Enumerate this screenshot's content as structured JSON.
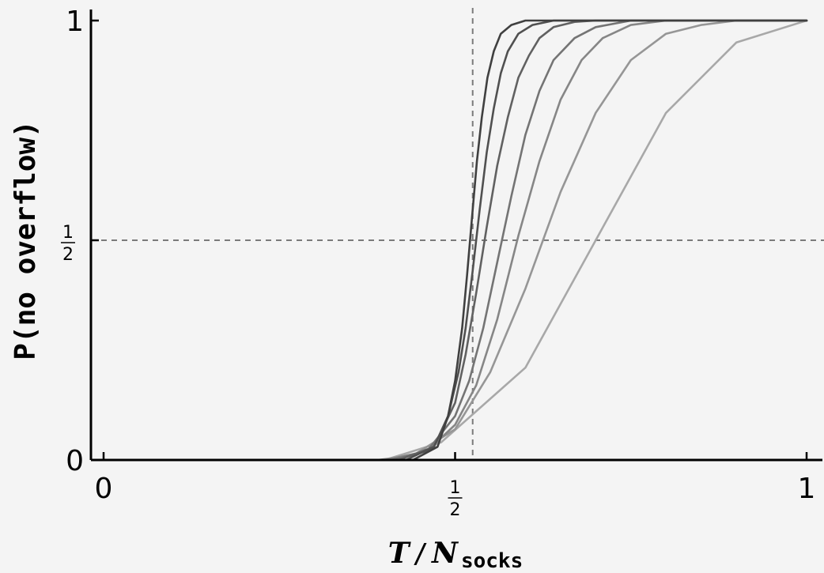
{
  "chart_data": {
    "type": "line",
    "title": "",
    "xlabel": {
      "main": "T",
      "slash": "/",
      "base": "N",
      "subscript": "socks"
    },
    "ylabel": "P(no overflow)",
    "xlim": [
      0,
      1
    ],
    "ylim": [
      0,
      1
    ],
    "x_ticks": [
      {
        "value": 0,
        "kind": "text",
        "text": "0"
      },
      {
        "value": 0.5,
        "kind": "fraction",
        "num": "1",
        "den": "2"
      },
      {
        "value": 1,
        "kind": "text",
        "text": "1"
      }
    ],
    "y_ticks": [
      {
        "value": 0,
        "kind": "text",
        "text": "0"
      },
      {
        "value": 0.5,
        "kind": "fraction",
        "num": "1",
        "den": "2"
      },
      {
        "value": 1,
        "kind": "text",
        "text": "1"
      }
    ],
    "reference_lines": {
      "vertical_x": 0.525,
      "horizontal_y": 0.5
    },
    "grid": false,
    "legend": "none",
    "series": [
      {
        "color": "#a8a8a8",
        "x": [
          0.0,
          0.4,
          0.48,
          0.6,
          0.8,
          0.9,
          1.0
        ],
        "y": [
          0.0,
          0.0,
          0.04,
          0.21,
          0.79,
          0.95,
          1.0
        ]
      },
      {
        "color": "#969696",
        "x": [
          0.0,
          0.39,
          0.44,
          0.5,
          0.55,
          0.6,
          0.65,
          0.7,
          0.75,
          0.8,
          0.85,
          0.9,
          1.0
        ],
        "y": [
          0.0,
          0.0,
          0.01,
          0.07,
          0.2,
          0.39,
          0.61,
          0.79,
          0.91,
          0.97,
          0.99,
          1.0,
          1.0
        ]
      },
      {
        "color": "#868686",
        "x": [
          0.0,
          0.4,
          0.46,
          0.5,
          0.53,
          0.56,
          0.59,
          0.62,
          0.65,
          0.68,
          0.71,
          0.75,
          0.8,
          1.0
        ],
        "y": [
          0.0,
          0.0,
          0.02,
          0.08,
          0.17,
          0.32,
          0.51,
          0.68,
          0.82,
          0.91,
          0.96,
          0.99,
          1.0,
          1.0
        ]
      },
      {
        "color": "#747474",
        "x": [
          0.0,
          0.41,
          0.46,
          0.5,
          0.52,
          0.54,
          0.56,
          0.58,
          0.6,
          0.62,
          0.64,
          0.67,
          0.7,
          0.75,
          1.0
        ],
        "y": [
          0.0,
          0.0,
          0.02,
          0.1,
          0.18,
          0.3,
          0.45,
          0.6,
          0.74,
          0.84,
          0.91,
          0.96,
          0.985,
          1.0,
          1.0
        ]
      },
      {
        "color": "#616161",
        "x": [
          0.0,
          0.42,
          0.47,
          0.5,
          0.515,
          0.53,
          0.545,
          0.56,
          0.575,
          0.59,
          0.605,
          0.62,
          0.64,
          0.67,
          0.7,
          1.0
        ],
        "y": [
          0.0,
          0.0,
          0.03,
          0.13,
          0.24,
          0.38,
          0.53,
          0.67,
          0.78,
          0.87,
          0.92,
          0.96,
          0.985,
          0.997,
          1.0,
          1.0
        ]
      },
      {
        "color": "#505050",
        "x": [
          0.0,
          0.43,
          0.47,
          0.49,
          0.505,
          0.515,
          0.525,
          0.535,
          0.545,
          0.555,
          0.565,
          0.575,
          0.59,
          0.61,
          0.64,
          1.0
        ],
        "y": [
          0.0,
          0.0,
          0.03,
          0.1,
          0.2,
          0.3,
          0.43,
          0.57,
          0.7,
          0.8,
          0.88,
          0.93,
          0.97,
          0.99,
          1.0,
          1.0
        ]
      },
      {
        "color": "#404040",
        "x": [
          0.0,
          0.44,
          0.475,
          0.49,
          0.5,
          0.51,
          0.517,
          0.524,
          0.531,
          0.538,
          0.546,
          0.555,
          0.565,
          0.58,
          0.6,
          1.0
        ],
        "y": [
          0.0,
          0.0,
          0.03,
          0.1,
          0.18,
          0.3,
          0.42,
          0.55,
          0.68,
          0.78,
          0.87,
          0.93,
          0.97,
          0.99,
          1.0,
          1.0
        ]
      }
    ]
  }
}
